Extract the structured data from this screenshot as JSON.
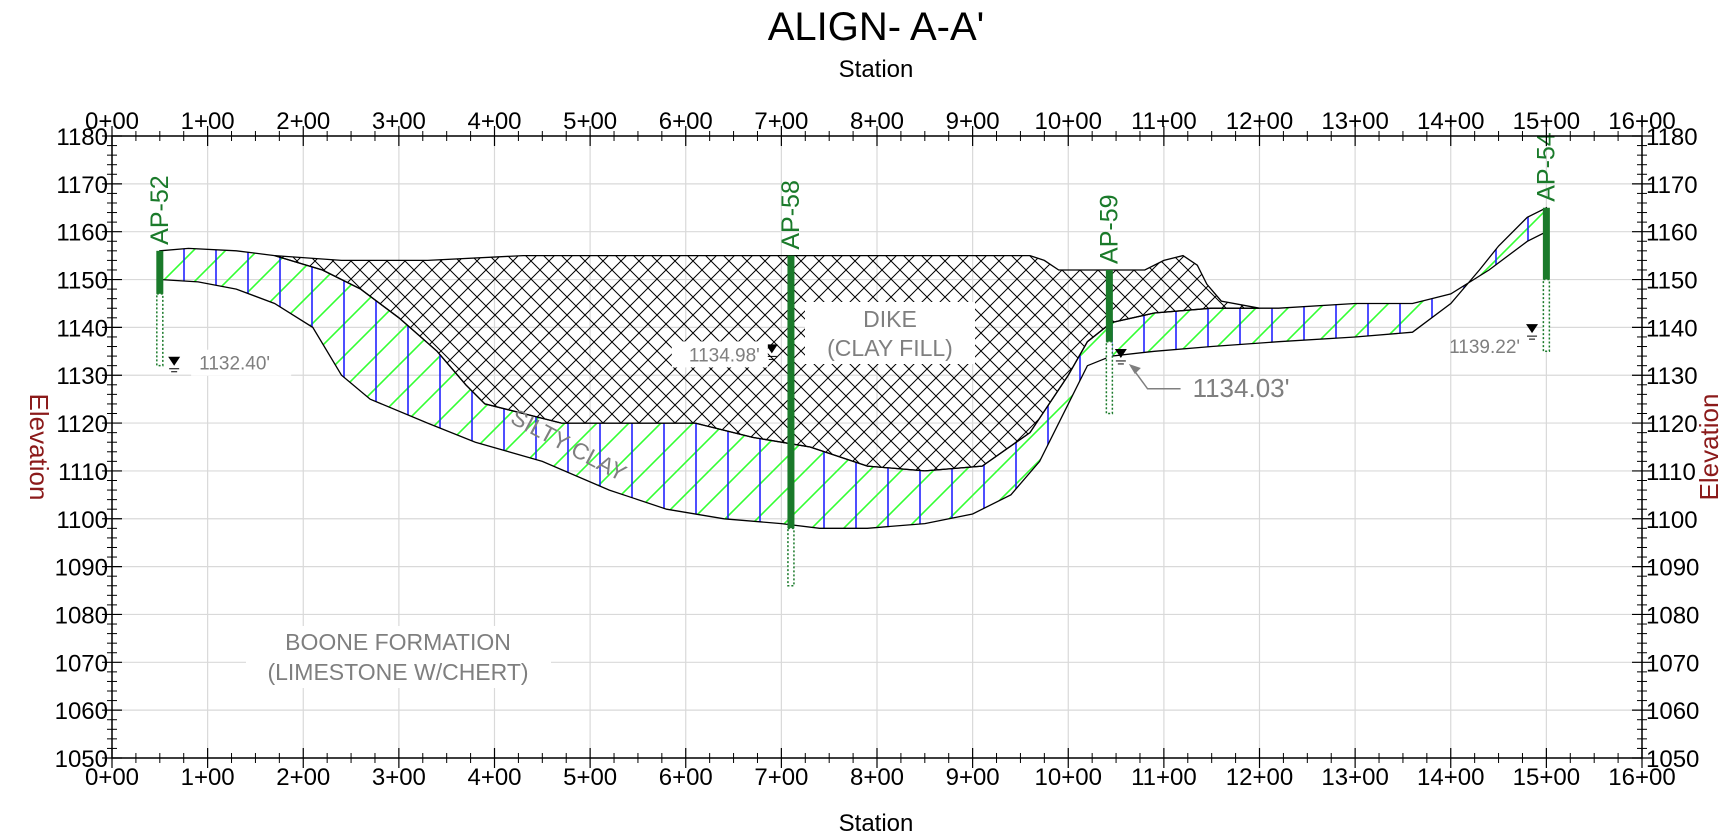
{
  "title": "ALIGN- A-A'",
  "x_axis_title_top": "Station",
  "x_axis_title_bottom": "Station",
  "y_axis_title_left": "Elevation",
  "y_axis_title_right": "Elevation",
  "x_ticks": [
    "0+00",
    "1+00",
    "2+00",
    "3+00",
    "4+00",
    "5+00",
    "6+00",
    "7+00",
    "8+00",
    "9+00",
    "10+00",
    "11+00",
    "12+00",
    "13+00",
    "14+00",
    "15+00",
    "16+00"
  ],
  "y_ticks": [
    "1050",
    "1060",
    "1070",
    "1080",
    "1090",
    "1100",
    "1110",
    "1120",
    "1130",
    "1140",
    "1150",
    "1160",
    "1170",
    "1180"
  ],
  "x_range_ft": [
    0,
    1600
  ],
  "y_range_ft": [
    1050,
    1180
  ],
  "layers": {
    "dike": {
      "name_line1": "DIKE",
      "name_line2": "(CLAY FILL)"
    },
    "silty_clay": {
      "name": "SILTY CLAY"
    },
    "boone": {
      "name_line1": "BOONE FORMATION",
      "name_line2": "(LIMESTONE W/CHERT)"
    }
  },
  "borings": [
    {
      "id": "AP-52",
      "station_ft": 50,
      "top_elev": 1156,
      "solid_bottom": 1147,
      "bottom_elev": 1132
    },
    {
      "id": "AP-58",
      "station_ft": 710,
      "top_elev": 1155,
      "solid_bottom": 1098,
      "bottom_elev": 1086
    },
    {
      "id": "AP-59",
      "station_ft": 1043,
      "top_elev": 1152,
      "solid_bottom": 1137,
      "bottom_elev": 1122
    },
    {
      "id": "AP-54",
      "station_ft": 1500,
      "top_elev": 1165,
      "solid_bottom": 1150,
      "bottom_elev": 1135
    }
  ],
  "water_levels": [
    {
      "label": "1132.40'",
      "station_ft": 65,
      "elev": 1132.4
    },
    {
      "label": "1134.98'",
      "station_ft": 690,
      "elev": 1134.98
    },
    {
      "label": "1134.03'",
      "station_ft": 1055,
      "elev": 1134.03
    },
    {
      "label": "1139.22'",
      "station_ft": 1485,
      "elev": 1139.22
    }
  ],
  "colors": {
    "boring": "#1a7a2a",
    "elevation_label": "#8b1a1a",
    "hatch_green": "#33ff33",
    "hatch_blue": "#2222ff",
    "grid": "#d9d9d9",
    "gray_text": "#7f7f7f"
  }
}
